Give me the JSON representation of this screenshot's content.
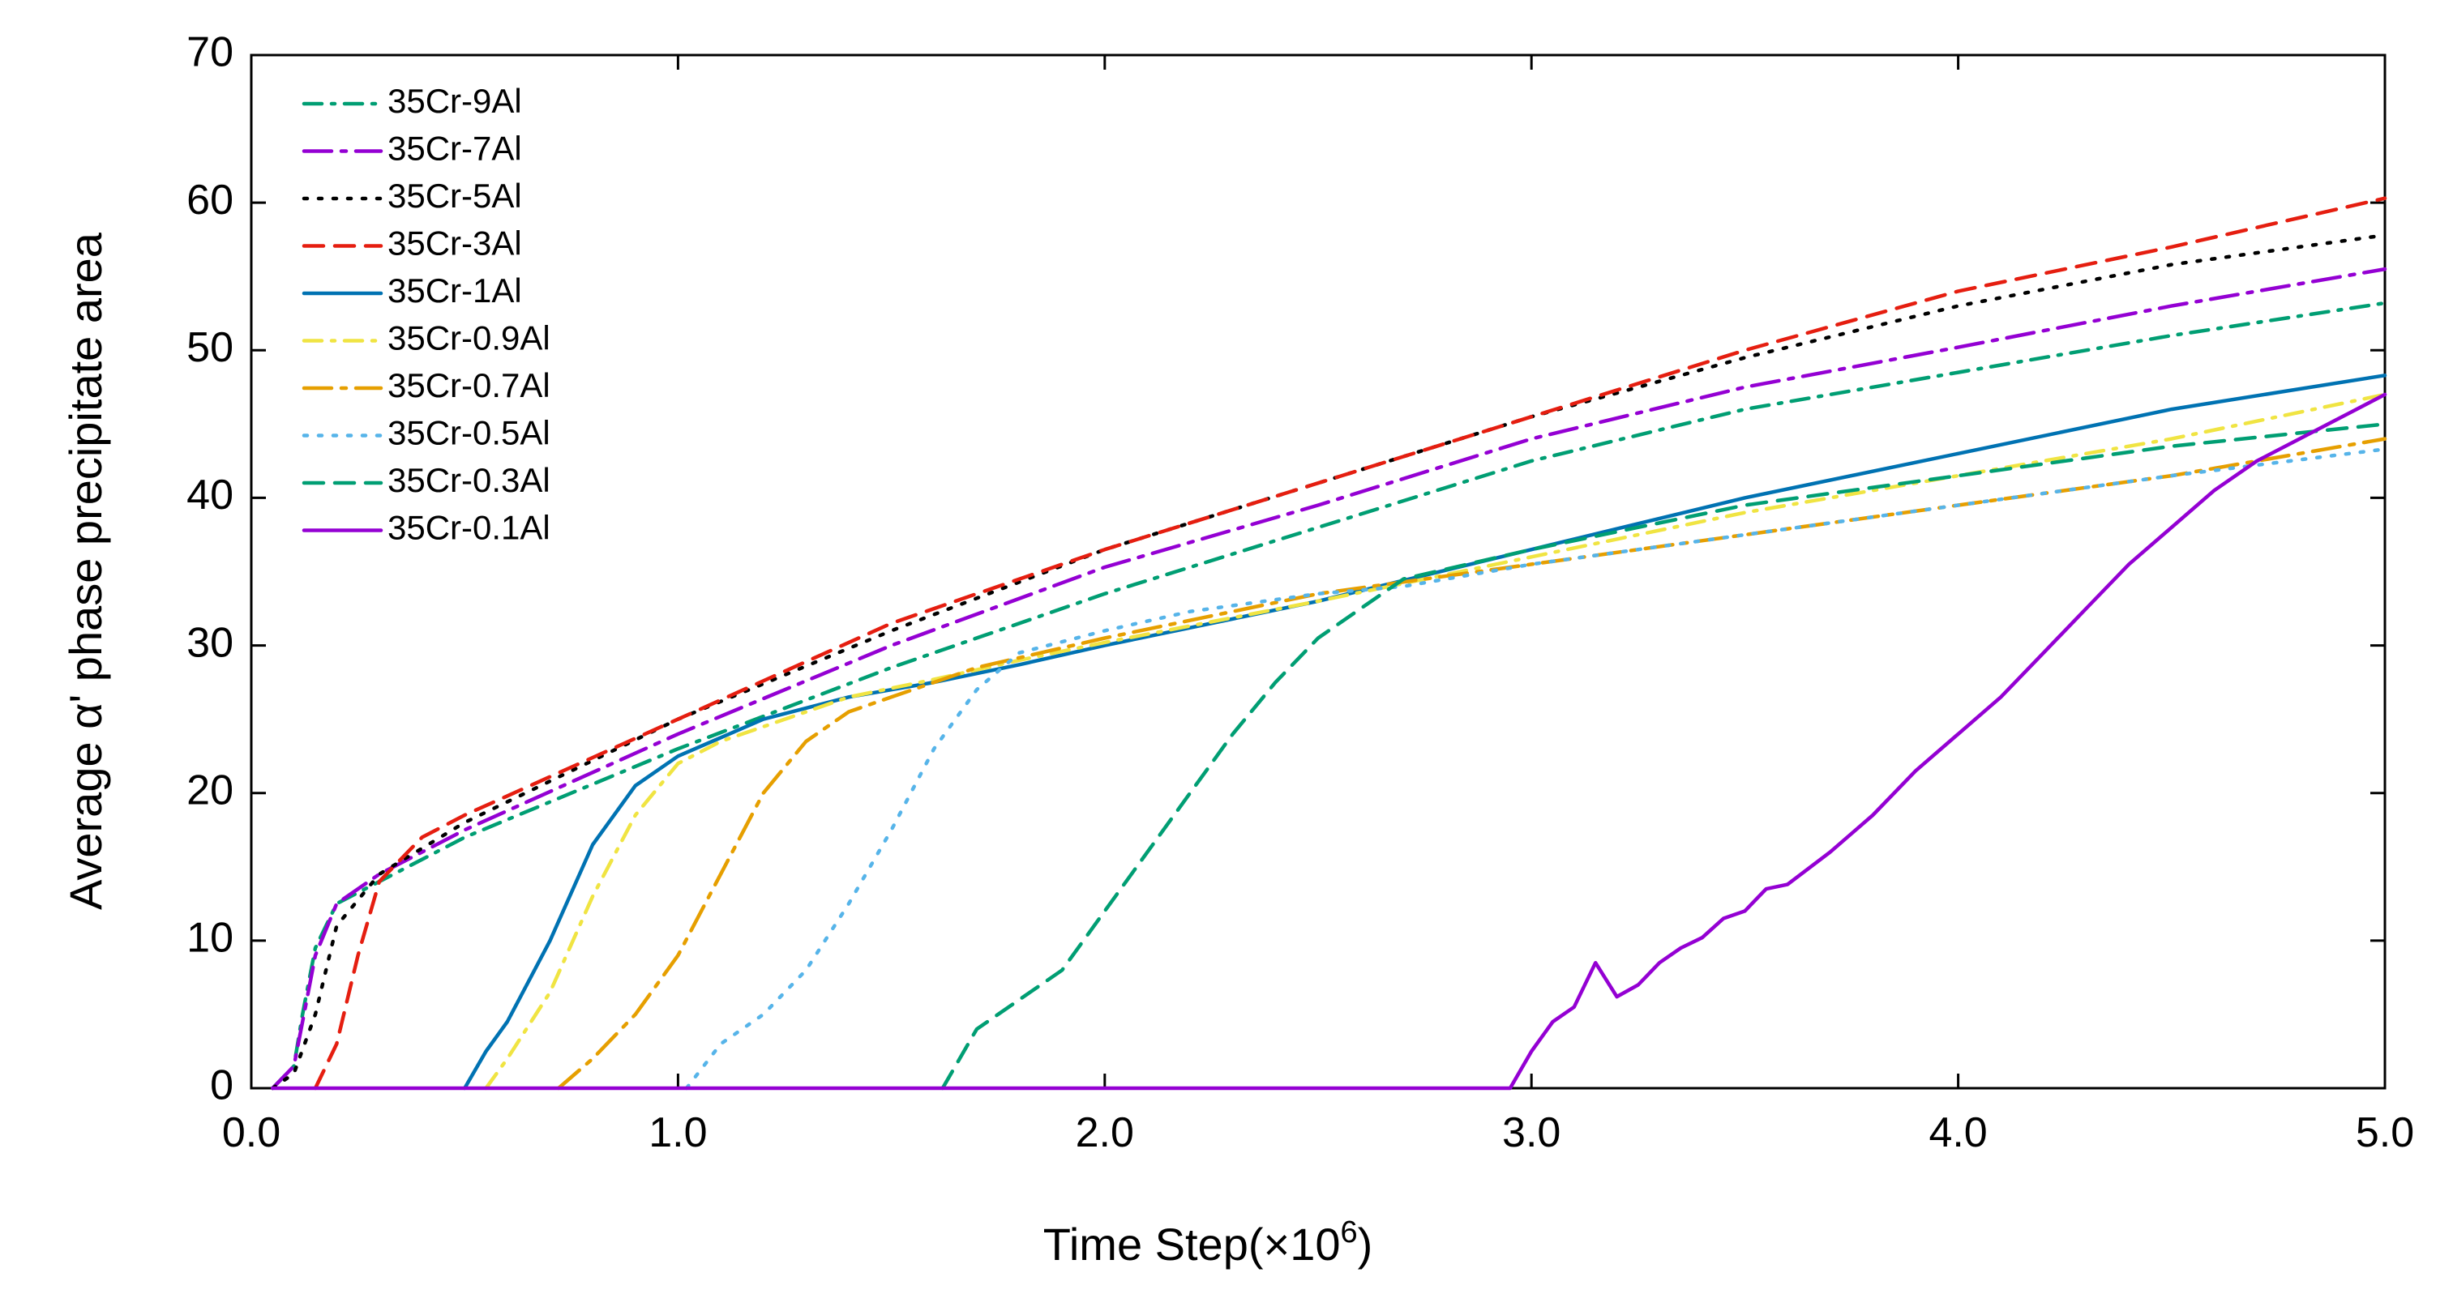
{
  "chart_data": {
    "type": "line",
    "xlabel_main": "Time Step(×10",
    "xlabel_exp": "6",
    "xlabel_close": ")",
    "ylabel": "Average  α' phase precipitate area",
    "xlim": [
      0,
      5
    ],
    "ylim": [
      0,
      70
    ],
    "xticks": [
      0,
      1,
      2,
      3,
      4,
      5
    ],
    "xtick_labels": [
      "0.0",
      "1.0",
      "2.0",
      "3.0",
      "4.0",
      "5.0"
    ],
    "yticks": [
      0,
      10,
      20,
      30,
      40,
      50,
      60,
      70
    ],
    "ytick_labels": [
      "0",
      "10",
      "20",
      "30",
      "40",
      "50",
      "60",
      "70"
    ],
    "legend_position": "top-left",
    "series": [
      {
        "name": "35Cr-9Al",
        "color": "#009e73",
        "dash": "dashdot",
        "x": [
          0.05,
          0.1,
          0.12,
          0.15,
          0.2,
          0.3,
          0.5,
          1.0,
          1.5,
          2.0,
          2.5,
          3.0,
          3.5,
          4.0,
          4.5,
          5.0
        ],
        "y": [
          0,
          1.5,
          5,
          9.5,
          12.5,
          14,
          17,
          23,
          28.5,
          33.5,
          38,
          42.5,
          46,
          48.5,
          51,
          53.2
        ]
      },
      {
        "name": "35Cr-7Al",
        "color": "#9400d3",
        "dash": "longdashdot",
        "x": [
          0.05,
          0.1,
          0.12,
          0.15,
          0.2,
          0.3,
          0.5,
          1.0,
          1.5,
          2.0,
          2.5,
          3.0,
          3.5,
          4.0,
          4.5,
          5.0
        ],
        "y": [
          0,
          1.5,
          4.5,
          9,
          12.5,
          14.5,
          17.5,
          24,
          30,
          35.3,
          39.5,
          44,
          47.5,
          50.2,
          53,
          55.5
        ]
      },
      {
        "name": "35Cr-5Al",
        "color": "#000000",
        "dash": "dotted",
        "x": [
          0.05,
          0.1,
          0.15,
          0.2,
          0.3,
          0.5,
          1.0,
          1.5,
          2.0,
          2.5,
          3.0,
          3.5,
          4.0,
          4.5,
          5.0
        ],
        "y": [
          0,
          1,
          5,
          11,
          14.5,
          18,
          25,
          31,
          36.5,
          41,
          45.5,
          49.5,
          53,
          55.8,
          57.8
        ]
      },
      {
        "name": "35Cr-3Al",
        "color": "#e51e10",
        "dash": "dashed",
        "x": [
          0.15,
          0.2,
          0.25,
          0.3,
          0.4,
          0.5,
          1.0,
          1.5,
          2.0,
          2.5,
          3.0,
          3.5,
          4.0,
          4.5,
          5.0
        ],
        "y": [
          0,
          3,
          9,
          14,
          17,
          18.5,
          25,
          31.5,
          36.5,
          41,
          45.5,
          50,
          54,
          57,
          60.3
        ]
      },
      {
        "name": "35Cr-1Al",
        "color": "#0072b2",
        "dash": "solid",
        "x": [
          0.5,
          0.55,
          0.6,
          0.7,
          0.8,
          0.9,
          1.0,
          1.2,
          1.4,
          1.6,
          1.8,
          2.0,
          2.5,
          3.0,
          3.5,
          4.0,
          4.5,
          5.0
        ],
        "y": [
          0,
          2.5,
          4.5,
          10,
          16.5,
          20.5,
          22.5,
          25,
          26.5,
          27.5,
          28.7,
          30,
          33,
          36.5,
          40,
          43,
          46,
          48.3
        ]
      },
      {
        "name": "35Cr-0.9Al",
        "color": "#f0e442",
        "dash": "dashdot",
        "x": [
          0.55,
          0.6,
          0.7,
          0.8,
          0.9,
          1.0,
          1.1,
          1.2,
          1.4,
          1.6,
          1.8,
          2.0,
          2.5,
          3.0,
          3.5,
          4.0,
          4.5,
          5.0
        ],
        "y": [
          0,
          2,
          6.5,
          13,
          18.5,
          22,
          23.5,
          24.5,
          26.5,
          27.7,
          29,
          30.2,
          33,
          36,
          39,
          41.5,
          44,
          47
        ]
      },
      {
        "name": "35Cr-0.7Al",
        "color": "#e69f00",
        "dash": "longdashdot",
        "x": [
          0.72,
          0.8,
          0.9,
          1.0,
          1.1,
          1.2,
          1.3,
          1.4,
          1.5,
          1.7,
          2.0,
          2.5,
          3.0,
          3.5,
          4.0,
          4.5,
          5.0
        ],
        "y": [
          0,
          2,
          5,
          9,
          14.5,
          20,
          23.5,
          25.5,
          26.5,
          28.5,
          30.5,
          33.5,
          35.5,
          37.5,
          39.5,
          41.5,
          44
        ]
      },
      {
        "name": "35Cr-0.5Al",
        "color": "#56b4e9",
        "dash": "dotted",
        "x": [
          1.02,
          1.1,
          1.2,
          1.3,
          1.4,
          1.5,
          1.6,
          1.7,
          1.8,
          2.0,
          2.2,
          2.5,
          2.7,
          3.0,
          3.5,
          4.0,
          4.5,
          5.0
        ],
        "y": [
          0,
          3,
          5,
          8,
          12.5,
          17.5,
          23,
          27,
          29.5,
          31,
          32.3,
          33.5,
          34,
          35.5,
          37.5,
          39.5,
          41.5,
          43.3
        ]
      },
      {
        "name": "35Cr-0.3Al",
        "color": "#009e73",
        "dash": "dashed",
        "x": [
          1.62,
          1.7,
          1.8,
          1.9,
          2.0,
          2.1,
          2.2,
          2.3,
          2.4,
          2.5,
          2.6,
          2.7,
          3.0,
          3.5,
          4.0,
          4.5,
          5.0
        ],
        "y": [
          0,
          4,
          6,
          8,
          12,
          16,
          20,
          24,
          27.5,
          30.5,
          32.5,
          34.5,
          36.5,
          39.5,
          41.5,
          43.5,
          45
        ]
      },
      {
        "name": "35Cr-0.1Al",
        "color": "#9400d3",
        "dash": "solid",
        "x": [
          0.05,
          2.95,
          3.0,
          3.05,
          3.1,
          3.15,
          3.2,
          3.25,
          3.3,
          3.35,
          3.4,
          3.45,
          3.5,
          3.55,
          3.6,
          3.7,
          3.8,
          3.9,
          4.0,
          4.1,
          4.2,
          4.3,
          4.4,
          4.5,
          4.6,
          4.7,
          4.8,
          4.9,
          5.0
        ],
        "y": [
          0,
          0,
          2.5,
          4.5,
          5.5,
          8.5,
          6.2,
          7,
          8.5,
          9.5,
          10.2,
          11.5,
          12,
          13.5,
          13.8,
          16,
          18.5,
          21.5,
          24,
          26.5,
          29.5,
          32.5,
          35.5,
          38,
          40.5,
          42.5,
          44,
          45.5,
          47
        ]
      }
    ]
  }
}
